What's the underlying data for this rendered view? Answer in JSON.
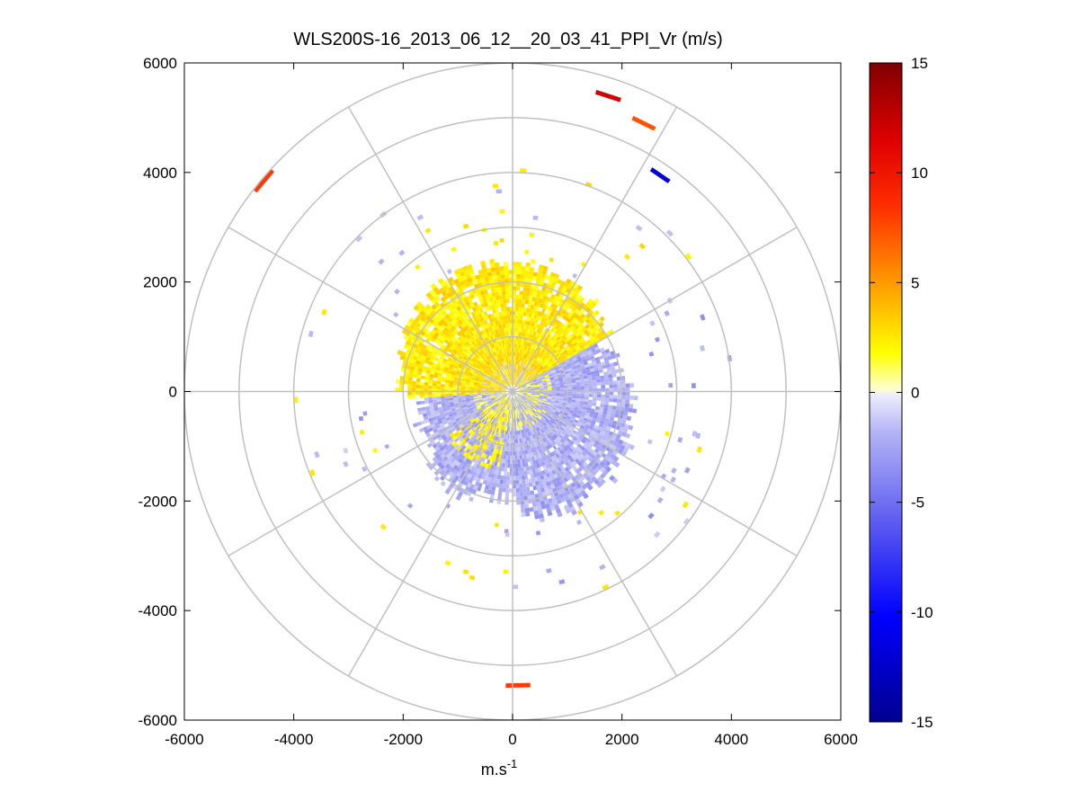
{
  "chart_data": {
    "type": "heatmap",
    "subtype": "polar-ppi",
    "title": "WLS200S-16_2013_06_12__20_03_41_PPI_Vr (m/s)",
    "xlabel": "m.s",
    "xlabel_sup": "-1",
    "ylabel": "",
    "xlim": [
      -6000,
      6000
    ],
    "ylim": [
      -6000,
      6000
    ],
    "x_ticks": [
      "-6000",
      "-4000",
      "-2000",
      "0",
      "2000",
      "4000",
      "6000"
    ],
    "y_ticks": [
      "6000",
      "4000",
      "2000",
      "0",
      "-2000",
      "-4000",
      "-6000"
    ],
    "range_rings": [
      1000,
      2000,
      3000,
      4000,
      5000,
      6000
    ],
    "spokes_deg_step": 30,
    "grid": true,
    "colorbar": {
      "clim": [
        -15,
        15
      ],
      "ticks": [
        "15",
        "10",
        "5",
        "0",
        "-5",
        "-10",
        "-15"
      ],
      "colormap": "blue-white-yellow-red",
      "placement": "right"
    },
    "fields": [
      {
        "name": "near-range positive",
        "r": [
          150,
          2150
        ],
        "az": [
          -95,
          60
        ],
        "v": 1.5
      },
      {
        "name": "near-range negative",
        "r": [
          150,
          2200
        ],
        "az": [
          60,
          235
        ],
        "v": -2.0
      },
      {
        "name": "outer scattered returns",
        "r": [
          2400,
          5400
        ],
        "az": [
          0,
          360
        ],
        "v": "mixed"
      }
    ],
    "isolated_returns": [
      {
        "x": 1750,
        "y": 5400,
        "v": 12
      },
      {
        "x": 2400,
        "y": 4900,
        "v": 7
      },
      {
        "x": 2700,
        "y": 3950,
        "v": -11
      },
      {
        "x": -4550,
        "y": 3850,
        "v": 8
      },
      {
        "x": 100,
        "y": -5370,
        "v": 8
      }
    ]
  }
}
